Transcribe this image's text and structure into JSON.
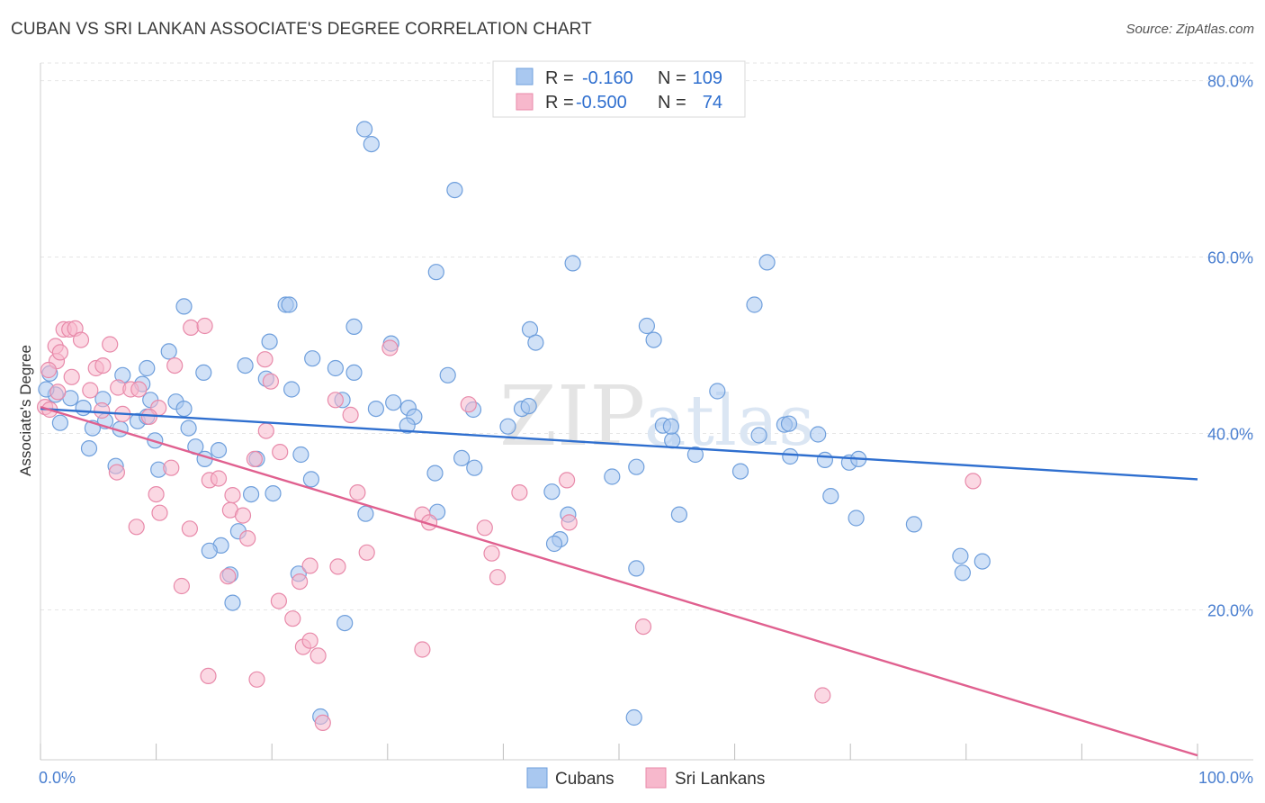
{
  "header": {
    "title": "CUBAN VS SRI LANKAN ASSOCIATE'S DEGREE CORRELATION CHART",
    "source": "Source: ZipAtlas.com"
  },
  "watermark": {
    "zip": "ZIP",
    "atlas": "atlas"
  },
  "chart_data": {
    "type": "scatter",
    "ylabel": "Associate's Degree",
    "xlim": [
      0,
      100
    ],
    "ylim": [
      3,
      82
    ],
    "x_tick_labels": [
      "0.0%",
      "100.0%"
    ],
    "y_ticks": [
      20,
      40,
      60,
      80
    ],
    "y_tick_labels": [
      "20.0%",
      "40.0%",
      "60.0%",
      "80.0%"
    ],
    "grid": true,
    "legend": {
      "placement": "top-center",
      "entries": [
        {
          "r_label": "R =",
          "r_value": "-0.160",
          "n_label": "N =",
          "n_value": "109"
        },
        {
          "r_label": "R =",
          "r_value": "-0.500",
          "n_label": "N =",
          "n_value": "74"
        }
      ]
    },
    "colors": {
      "cubans_fill": "#a9c8f0",
      "cubans_stroke": "#6f9fdc",
      "cubans_line": "#2f6fcf",
      "srilankans_fill": "#f7b8cc",
      "srilankans_stroke": "#e88aaa",
      "srilankans_line": "#e0608f"
    },
    "series": [
      {
        "name": "Cubans",
        "trend": [
          [
            0,
            42.8
          ],
          [
            100,
            34.8
          ]
        ],
        "points": [
          [
            28,
            74.5
          ],
          [
            28.6,
            72.8
          ],
          [
            35.8,
            67.6
          ],
          [
            34.2,
            58.3
          ],
          [
            46,
            59.3
          ],
          [
            62.8,
            59.4
          ],
          [
            61.7,
            54.6
          ],
          [
            12.4,
            54.4
          ],
          [
            21.2,
            54.6
          ],
          [
            21.5,
            54.6
          ],
          [
            27.1,
            52.1
          ],
          [
            42.3,
            51.8
          ],
          [
            52.4,
            52.2
          ],
          [
            19.8,
            50.4
          ],
          [
            11.1,
            49.3
          ],
          [
            53,
            50.6
          ],
          [
            30.3,
            50.2
          ],
          [
            42.8,
            50.3
          ],
          [
            9.2,
            47.4
          ],
          [
            17.7,
            47.7
          ],
          [
            14.1,
            46.9
          ],
          [
            25.5,
            47.4
          ],
          [
            27.1,
            46.9
          ],
          [
            35.2,
            46.6
          ],
          [
            19.5,
            46.2
          ],
          [
            7.1,
            46.6
          ],
          [
            5.4,
            43.9
          ],
          [
            8.8,
            45.6
          ],
          [
            21.7,
            45
          ],
          [
            58.5,
            44.8
          ],
          [
            26.1,
            43.8
          ],
          [
            1.3,
            44.4
          ],
          [
            2.6,
            44
          ],
          [
            5.6,
            41.4
          ],
          [
            11.7,
            43.6
          ],
          [
            12.4,
            42.8
          ],
          [
            29,
            42.8
          ],
          [
            30.5,
            43.5
          ],
          [
            31.8,
            42.9
          ],
          [
            32.3,
            41.9
          ],
          [
            37.4,
            42.7
          ],
          [
            41.6,
            42.8
          ],
          [
            42.2,
            43.1
          ],
          [
            3.7,
            42.9
          ],
          [
            8.4,
            41.4
          ],
          [
            9.2,
            41.9
          ],
          [
            1.7,
            41.2
          ],
          [
            4.5,
            40.6
          ],
          [
            6.9,
            40.5
          ],
          [
            12.8,
            40.6
          ],
          [
            31.7,
            40.9
          ],
          [
            40.4,
            40.8
          ],
          [
            53.8,
            40.9
          ],
          [
            64.3,
            41
          ],
          [
            64.7,
            41.1
          ],
          [
            54.6,
            39.2
          ],
          [
            9.9,
            39.2
          ],
          [
            13.4,
            38.5
          ],
          [
            15.4,
            38.1
          ],
          [
            4.2,
            38.3
          ],
          [
            22.5,
            37.6
          ],
          [
            36.4,
            37.2
          ],
          [
            56.6,
            37.6
          ],
          [
            14.2,
            37.1
          ],
          [
            18.7,
            37.1
          ],
          [
            64.8,
            37.4
          ],
          [
            67.8,
            37
          ],
          [
            69.9,
            36.7
          ],
          [
            6.5,
            36.3
          ],
          [
            10.2,
            35.9
          ],
          [
            37.5,
            36.1
          ],
          [
            51.5,
            36.2
          ],
          [
            60.5,
            35.7
          ],
          [
            70.7,
            37.1
          ],
          [
            67.2,
            39.9
          ],
          [
            62.1,
            39.8
          ],
          [
            34.1,
            35.5
          ],
          [
            23.4,
            34.8
          ],
          [
            49.4,
            35.1
          ],
          [
            18.2,
            33.1
          ],
          [
            20.1,
            33.2
          ],
          [
            44.2,
            33.4
          ],
          [
            68.3,
            32.9
          ],
          [
            28.1,
            30.9
          ],
          [
            34.3,
            31.1
          ],
          [
            45.6,
            30.8
          ],
          [
            55.2,
            30.8
          ],
          [
            70.5,
            30.4
          ],
          [
            75.5,
            29.7
          ],
          [
            17.1,
            28.9
          ],
          [
            44.9,
            28
          ],
          [
            44.4,
            27.5
          ],
          [
            15.6,
            27.3
          ],
          [
            14.6,
            26.7
          ],
          [
            79.5,
            26.1
          ],
          [
            81.4,
            25.5
          ],
          [
            16.4,
            24
          ],
          [
            22.3,
            24.1
          ],
          [
            79.7,
            24.2
          ],
          [
            51.5,
            24.7
          ],
          [
            16.6,
            20.8
          ],
          [
            26.3,
            18.5
          ],
          [
            24.2,
            7.9
          ],
          [
            51.3,
            7.8
          ],
          [
            0.5,
            45
          ],
          [
            0.8,
            46.8
          ],
          [
            54.5,
            40.8
          ],
          [
            9.5,
            43.8
          ],
          [
            23.5,
            48.5
          ]
        ]
      },
      {
        "name": "Sri Lankans",
        "trend": [
          [
            0,
            43
          ],
          [
            100,
            3.5
          ]
        ],
        "points": [
          [
            2,
            51.8
          ],
          [
            2.5,
            51.8
          ],
          [
            3,
            51.9
          ],
          [
            1.3,
            49.9
          ],
          [
            3.5,
            50.6
          ],
          [
            6,
            50.1
          ],
          [
            1.4,
            48.2
          ],
          [
            1.7,
            49.2
          ],
          [
            13,
            52
          ],
          [
            14.2,
            52.2
          ],
          [
            0.7,
            47.2
          ],
          [
            4.8,
            47.4
          ],
          [
            5.4,
            47.7
          ],
          [
            11.6,
            47.7
          ],
          [
            19.4,
            48.4
          ],
          [
            30.2,
            49.7
          ],
          [
            2.7,
            46.4
          ],
          [
            19.9,
            45.9
          ],
          [
            4.3,
            44.9
          ],
          [
            6.7,
            45.2
          ],
          [
            7.8,
            45
          ],
          [
            8.5,
            45
          ],
          [
            0.4,
            43
          ],
          [
            0.8,
            42.7
          ],
          [
            5.3,
            42.6
          ],
          [
            7.1,
            42.2
          ],
          [
            10.2,
            42.9
          ],
          [
            26.8,
            42.1
          ],
          [
            37,
            43.3
          ],
          [
            25.5,
            43.8
          ],
          [
            9.4,
            41.9
          ],
          [
            19.5,
            40.3
          ],
          [
            20.7,
            37.9
          ],
          [
            18.5,
            37.1
          ],
          [
            11.3,
            36.1
          ],
          [
            6.6,
            35.6
          ],
          [
            14.6,
            34.7
          ],
          [
            15.4,
            34.9
          ],
          [
            27.4,
            33.3
          ],
          [
            41.4,
            33.3
          ],
          [
            45.5,
            34.7
          ],
          [
            10,
            33.1
          ],
          [
            16.6,
            33
          ],
          [
            16.4,
            31.3
          ],
          [
            17.5,
            30.7
          ],
          [
            10.3,
            31
          ],
          [
            33,
            30.8
          ],
          [
            33.6,
            29.9
          ],
          [
            38.4,
            29.3
          ],
          [
            45.7,
            29.9
          ],
          [
            8.3,
            29.4
          ],
          [
            12.9,
            29.2
          ],
          [
            17.9,
            28.1
          ],
          [
            28.2,
            26.5
          ],
          [
            39,
            26.4
          ],
          [
            23.3,
            25
          ],
          [
            25.7,
            24.9
          ],
          [
            16.2,
            23.8
          ],
          [
            22.4,
            23.2
          ],
          [
            39.5,
            23.7
          ],
          [
            12.2,
            22.7
          ],
          [
            20.6,
            21
          ],
          [
            21.8,
            19
          ],
          [
            52.1,
            18.1
          ],
          [
            22.7,
            15.8
          ],
          [
            23.3,
            16.5
          ],
          [
            33,
            15.5
          ],
          [
            24,
            14.8
          ],
          [
            14.5,
            12.5
          ],
          [
            18.7,
            12.1
          ],
          [
            67.6,
            10.3
          ],
          [
            24.4,
            7.2
          ],
          [
            80.6,
            34.6
          ],
          [
            1.5,
            44.7
          ]
        ]
      }
    ]
  }
}
